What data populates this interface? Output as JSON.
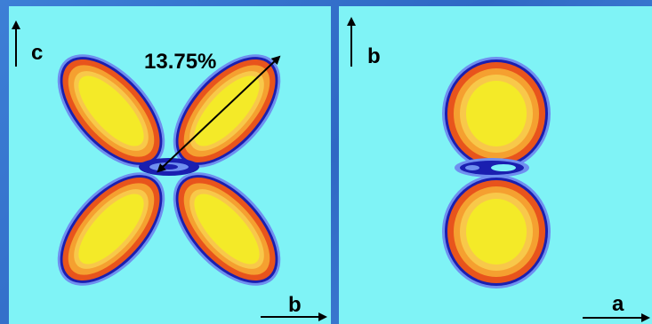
{
  "left_panel": {
    "vertical_axis_label": "c",
    "horizontal_axis_label": "b",
    "annotation": "13.75%"
  },
  "right_panel": {
    "vertical_axis_label": "b",
    "horizontal_axis_label": "a"
  },
  "colors": {
    "background": "#7ff3f6",
    "frame": "#3d7fd6",
    "outline": "#1a1fb0",
    "halo": "#6f8ff0",
    "outer": "#e8541c",
    "middle": "#f5a030",
    "inner": "#f8c84a",
    "core": "#f4ea28"
  }
}
